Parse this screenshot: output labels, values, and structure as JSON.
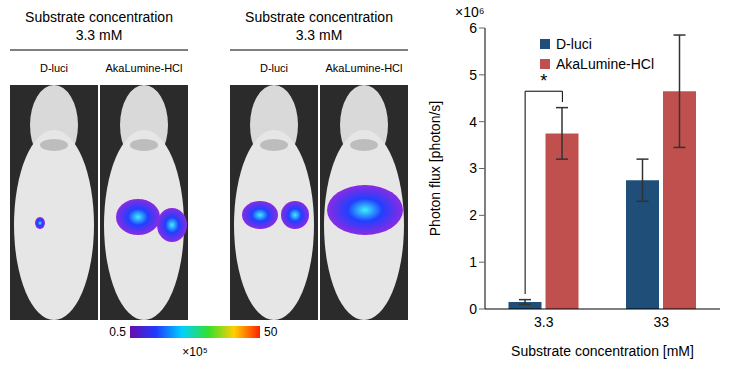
{
  "chart_data": {
    "type": "bar",
    "categories": [
      "3.3",
      "33"
    ],
    "x_label": "Substrate concentration [mM]",
    "y_label": "Photon flux [photon/s]",
    "y_multiplier": "×10⁶",
    "ylim": [
      0,
      6
    ],
    "yticks": [
      0,
      1,
      2,
      3,
      4,
      5,
      6
    ],
    "legend": "upper left",
    "series": [
      {
        "name": "D-luci",
        "color": "#1F4E79",
        "values": [
          0.15,
          2.75
        ],
        "errors": [
          0.05,
          0.45
        ]
      },
      {
        "name": "AkaLumine-HCl",
        "color": "#C0504D",
        "values": [
          3.75,
          4.65
        ],
        "errors": [
          0.55,
          1.2
        ]
      }
    ],
    "annotations": [
      {
        "text": "*",
        "category": "3.3",
        "between": [
          "D-luci",
          "AkaLumine-HCl"
        ]
      }
    ]
  },
  "image_panel": {
    "groups": [
      {
        "title": "Substrate concentration",
        "subtitle": "3.3 mM",
        "labels": [
          "D-luci",
          "AkaLumine-HCl"
        ]
      },
      {
        "title": "Substrate concentration",
        "subtitle": "3.3 mM",
        "labels": [
          "D-luci",
          "AkaLumine-HCl"
        ]
      }
    ],
    "colorbar": {
      "range": [
        0.5,
        50
      ],
      "multiplier": "×10⁵"
    }
  }
}
